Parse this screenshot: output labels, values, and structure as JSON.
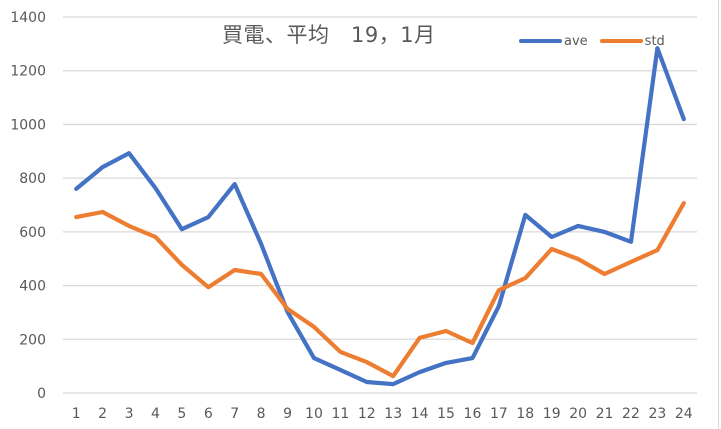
{
  "chart_data": {
    "type": "line",
    "title": "買電、平均　19，1月",
    "xlabel": "",
    "ylabel": "",
    "ylim": [
      0,
      1400
    ],
    "yticks": [
      0,
      200,
      400,
      600,
      800,
      1000,
      1200,
      1400
    ],
    "grid": true,
    "legend_position": "top-right",
    "x": [
      1,
      2,
      3,
      4,
      5,
      6,
      7,
      8,
      9,
      10,
      11,
      12,
      13,
      14,
      15,
      16,
      17,
      18,
      19,
      20,
      21,
      22,
      23,
      24
    ],
    "series": [
      {
        "name": "ave",
        "color": "#4472C4",
        "values": [
          760,
          841,
          893,
          763,
          610,
          655,
          778,
          555,
          302,
          130,
          86,
          41,
          33,
          78,
          112,
          130,
          324,
          663,
          581,
          622,
          600,
          563,
          1284,
          1020
        ]
      },
      {
        "name": "std",
        "color": "#ED7D31",
        "values": [
          655,
          674,
          622,
          581,
          477,
          394,
          458,
          443,
          313,
          246,
          153,
          115,
          63,
          205,
          231,
          186,
          383,
          428,
          536,
          499,
          443,
          488,
          532,
          707
        ]
      }
    ]
  },
  "colors": {
    "grid": "#d9d9d9",
    "axis_text": "#595959"
  }
}
